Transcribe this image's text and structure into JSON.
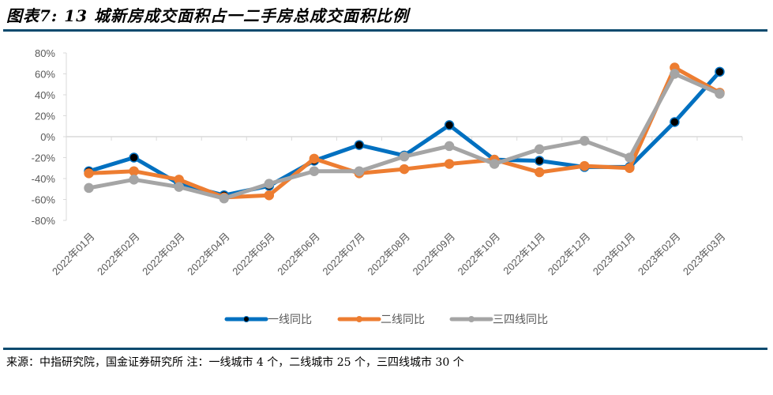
{
  "title": "图表7: 13 城新房成交面积占一二手房总成交面积比例",
  "source": "来源：中指研究院，国金证券研究所 注：一线城市 4 个，二线城市 25 个，三四线城市 30 个",
  "chart_data": {
    "type": "line",
    "title": "图表7: 13 城新房成交面积占一二手房总成交面积比例",
    "xlabel": "",
    "ylabel": "",
    "ylim": [
      -80,
      80
    ],
    "yticks": [
      80,
      60,
      40,
      20,
      0,
      -20,
      -40,
      -60,
      -80
    ],
    "ytick_labels": [
      "80%",
      "60%",
      "40%",
      "20%",
      "0%",
      "-20%",
      "-40%",
      "-60%",
      "-80%"
    ],
    "grid": false,
    "legend_position": "bottom",
    "categories": [
      "2022年01月",
      "2022年02月",
      "2022年03月",
      "2022年04月",
      "2022年05月",
      "2022年06月",
      "2022年07月",
      "2022年08月",
      "2022年09月",
      "2022年10月",
      "2022年11月",
      "2022年12月",
      "2023年01月",
      "2023年02月",
      "2023年03月"
    ],
    "series": [
      {
        "name": "一线同比",
        "color": "#0070c0",
        "marker_color": "#000000",
        "values": [
          -33,
          -20,
          -45,
          -56,
          -47,
          -23,
          -8,
          -18,
          11,
          -22,
          -23,
          -29,
          -29,
          14,
          62
        ]
      },
      {
        "name": "二线同比",
        "color": "#ed7d31",
        "marker_color": "#ed7d31",
        "values": [
          -35,
          -33,
          -41,
          -58,
          -56,
          -21,
          -35,
          -31,
          -26,
          -22,
          -34,
          -28,
          -30,
          66,
          42
        ]
      },
      {
        "name": "三四线同比",
        "color": "#a5a5a5",
        "marker_color": "#a5a5a5",
        "values": [
          -49,
          -41,
          -48,
          -59,
          -45,
          -33,
          -33,
          -19,
          -9,
          -26,
          -12,
          -4,
          -20,
          60,
          41
        ]
      }
    ]
  }
}
